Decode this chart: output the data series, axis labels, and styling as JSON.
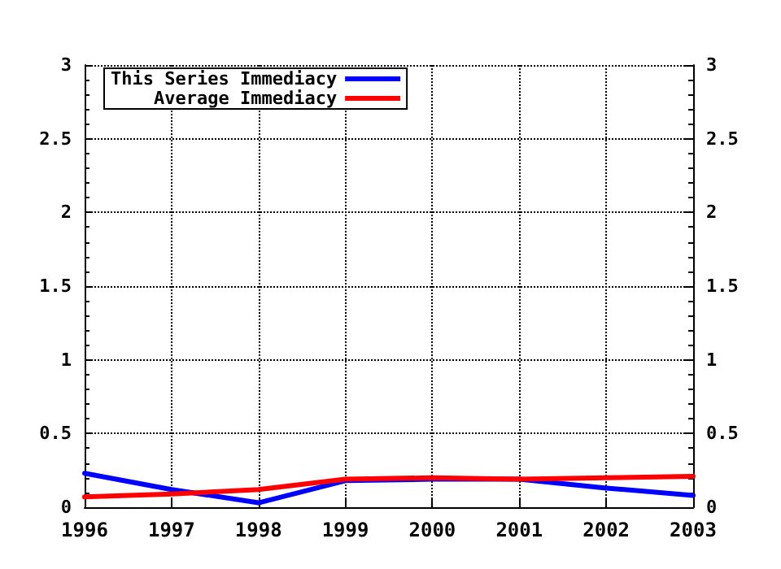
{
  "chart_data": {
    "type": "line",
    "categories": [
      "1996",
      "1997",
      "1998",
      "1999",
      "2000",
      "2001",
      "2002",
      "2003"
    ],
    "series": [
      {
        "name": "This Series Immediacy",
        "color": "#0000ff",
        "values": [
          0.23,
          0.12,
          0.03,
          0.18,
          0.19,
          0.19,
          0.13,
          0.08
        ]
      },
      {
        "name": "Average Immediacy",
        "color": "#ff0000",
        "values": [
          0.07,
          0.09,
          0.12,
          0.19,
          0.2,
          0.19,
          0.2,
          0.21
        ]
      }
    ],
    "ylim": [
      0,
      3
    ],
    "yticks": [
      0,
      0.5,
      1,
      1.5,
      2,
      2.5,
      3
    ],
    "y2lim": [
      0,
      3
    ],
    "y2ticks": [
      0,
      0.5,
      1,
      1.5,
      2,
      2.5,
      3
    ],
    "grid": true,
    "legend": "top left",
    "marker": "none",
    "line_style": "solid"
  }
}
